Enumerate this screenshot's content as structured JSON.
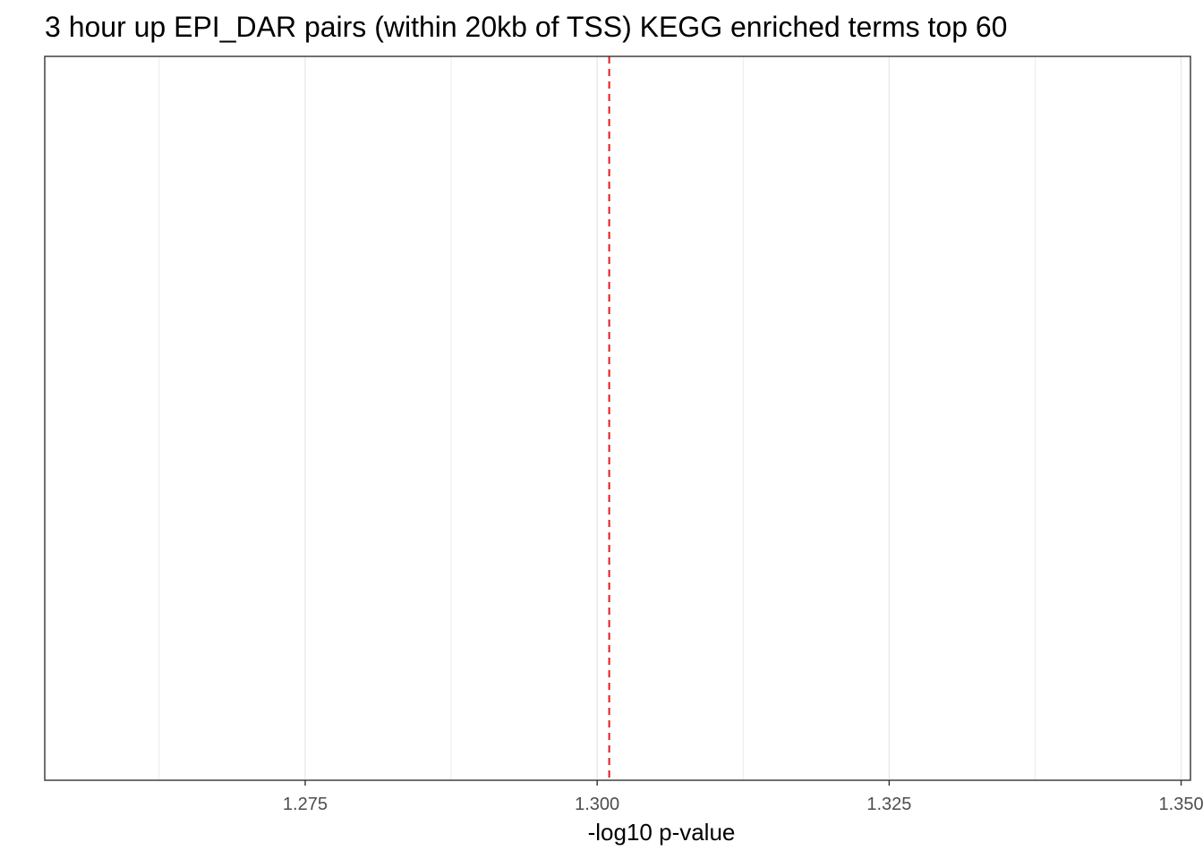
{
  "chart_data": {
    "type": "bar",
    "title": "3 hour up EPI_DAR pairs (within 20kb of TSS) KEGG enriched terms top 60",
    "xlabel": "-log10 p-value",
    "ylabel": "",
    "categories": [],
    "values": [],
    "xlim": [
      1.2527,
      1.3508
    ],
    "major_ticks": [
      1.275,
      1.3,
      1.325,
      1.35
    ],
    "tick_labels": [
      "1.275",
      "1.300",
      "1.325",
      "1.350"
    ],
    "minor_ticks": [
      1.2625,
      1.2875,
      1.3125,
      1.3375
    ],
    "reference_line": {
      "x": 1.30103,
      "style": "dashed",
      "color": "#e41a1c"
    },
    "grid": true,
    "legend": "none",
    "colors": {
      "grid": "#ebebeb",
      "panel_border": "#333333",
      "reference": "#e41a1c",
      "tick_text": "#4d4d4d"
    }
  }
}
